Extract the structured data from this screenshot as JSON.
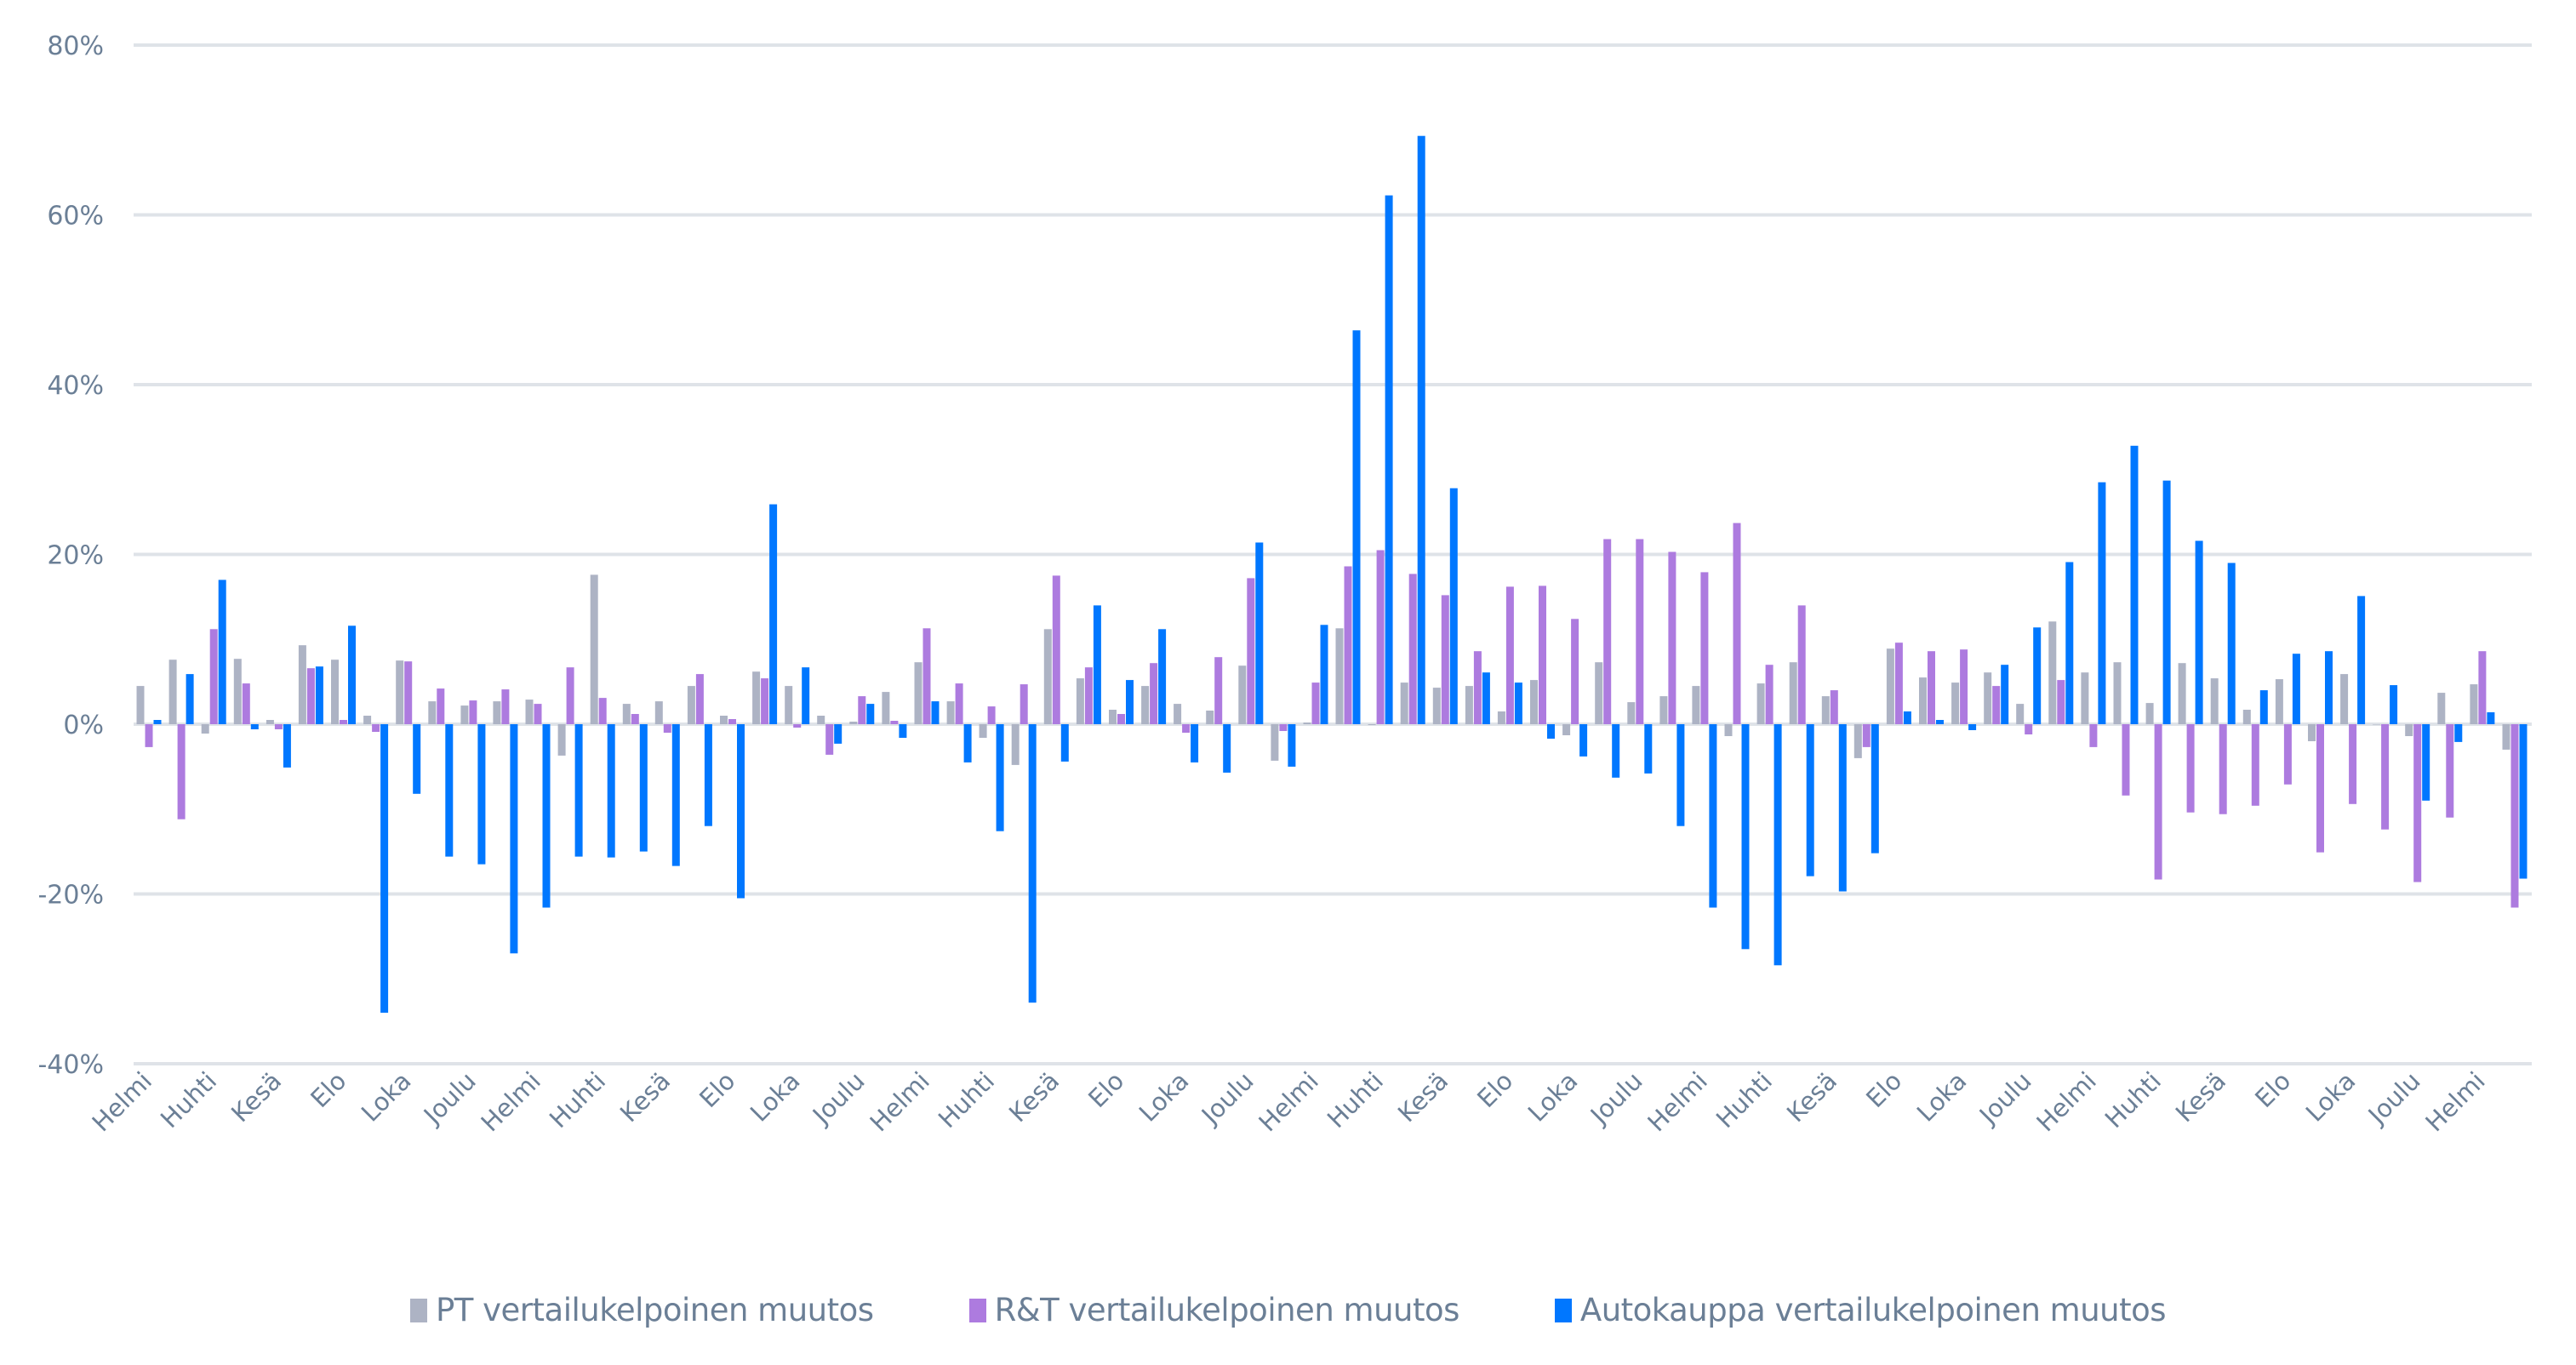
{
  "chart_data": {
    "type": "bar",
    "title": "",
    "xlabel": "",
    "ylabel": "",
    "ylim": [
      -40,
      80
    ],
    "yticks": [
      -40,
      -20,
      0,
      20,
      40,
      60,
      80
    ],
    "ytick_labels": [
      "-40%",
      "-20%",
      "0%",
      "20%",
      "40%",
      "60%",
      "80%"
    ],
    "grid": true,
    "legend_position": "bottom",
    "tick_labels": [
      "Helmi",
      "",
      "Huhti",
      "",
      "Kesä",
      "",
      "Elo",
      "",
      "Loka",
      "",
      "Joulu",
      "",
      "Helmi",
      "",
      "Huhti",
      "",
      "Kesä",
      "",
      "Elo",
      "",
      "Loka",
      "",
      "Joulu",
      "",
      "Helmi",
      "",
      "Huhti",
      "",
      "Kesä",
      "",
      "Elo",
      "",
      "Loka",
      "",
      "Joulu",
      "",
      "Helmi",
      "",
      "Huhti",
      "",
      "Kesä",
      "",
      "Elo",
      "",
      "Loka",
      "",
      "Joulu",
      "",
      "Helmi",
      "",
      "Huhti",
      "",
      "Kesä",
      "",
      "Elo",
      "",
      "Loka",
      "",
      "Joulu",
      "",
      "Helmi",
      "",
      "Huhti",
      "",
      "Kesä",
      "",
      "Elo",
      "",
      "Loka",
      "",
      "Joulu",
      "",
      "Helmi",
      ""
    ],
    "series": [
      {
        "name": "PT vertailukelpoinen muutos",
        "color": "#adb3c4",
        "values": [
          4.5,
          7.6,
          -1.1,
          7.7,
          0.5,
          9.3,
          7.6,
          1.0,
          7.5,
          2.7,
          2.2,
          2.7,
          2.9,
          -3.7,
          17.6,
          2.4,
          2.7,
          4.5,
          1.0,
          6.2,
          4.5,
          1.0,
          0.3,
          3.8,
          7.3,
          2.7,
          -1.6,
          -4.8,
          11.2,
          5.4,
          1.7,
          4.5,
          2.4,
          1.6,
          6.9,
          -4.3,
          0.2,
          11.3,
          -0.1,
          4.9,
          4.3,
          4.5,
          1.5,
          5.2,
          -1.3,
          7.3,
          2.6,
          3.3,
          4.5,
          -1.4,
          4.8,
          7.3,
          3.3,
          -4.0,
          8.9,
          5.5,
          4.9,
          6.1,
          2.4,
          12.1,
          6.1,
          7.3,
          2.5,
          7.2,
          5.4,
          1.7,
          5.3,
          -2.0,
          5.9,
          0.0,
          -1.4,
          3.7,
          4.7,
          -3.0
        ]
      },
      {
        "name": "R&T vertailukelpoinen muutos",
        "color": "#ad7bdf",
        "values": [
          -2.7,
          -11.2,
          11.2,
          4.8,
          -0.6,
          6.6,
          0.5,
          -0.9,
          7.4,
          4.2,
          2.8,
          4.1,
          2.4,
          6.7,
          3.1,
          1.2,
          -1.0,
          5.9,
          0.6,
          5.4,
          -0.4,
          -3.6,
          3.3,
          0.4,
          11.3,
          4.8,
          2.1,
          4.7,
          17.5,
          6.7,
          1.2,
          7.2,
          -1.0,
          7.9,
          17.2,
          -0.8,
          4.9,
          18.6,
          20.5,
          17.7,
          15.2,
          8.6,
          16.2,
          16.3,
          12.4,
          21.8,
          21.8,
          20.3,
          17.9,
          23.7,
          7.0,
          14.0,
          4.0,
          -2.7,
          9.6,
          8.6,
          8.8,
          4.5,
          -1.2,
          5.2,
          -2.7,
          -8.4,
          -18.3,
          -10.4,
          -10.6,
          -9.6,
          -7.1,
          -15.1,
          -9.4,
          -12.4,
          -18.6,
          -11.0,
          8.6,
          -21.6
        ]
      },
      {
        "name": "Autokauppa vertailukelpoinen muutos",
        "color": "#0077ff",
        "values": [
          0.5,
          5.9,
          17.0,
          -0.6,
          -5.1,
          6.8,
          11.6,
          -34.0,
          -8.2,
          -15.6,
          -16.5,
          -27.0,
          -21.6,
          -15.6,
          -15.7,
          -15.0,
          -16.7,
          -12.0,
          -20.5,
          25.9,
          6.7,
          -2.3,
          2.4,
          -1.6,
          2.7,
          -4.5,
          -12.6,
          -32.8,
          -4.4,
          14.0,
          5.2,
          11.2,
          -4.5,
          -5.7,
          21.4,
          -5.0,
          11.7,
          46.4,
          62.3,
          69.3,
          27.8,
          6.1,
          4.9,
          -1.7,
          -3.8,
          -6.3,
          -5.8,
          -12.0,
          -21.6,
          -26.5,
          -28.4,
          -17.9,
          -19.7,
          -15.2,
          1.5,
          0.5,
          -0.7,
          7.0,
          11.4,
          19.1,
          28.5,
          32.8,
          28.7,
          21.6,
          19.0,
          4.0,
          8.3,
          8.6,
          15.1,
          4.6,
          -9.0,
          -2.1,
          1.4,
          -18.2
        ]
      }
    ]
  },
  "legend": {
    "items": [
      {
        "label": "PT vertailukelpoinen muutos",
        "color": "#adb3c4"
      },
      {
        "label": "R&T vertailukelpoinen muutos",
        "color": "#ad7bdf"
      },
      {
        "label": "Autokauppa vertailukelpoinen muutos",
        "color": "#0077ff"
      }
    ]
  }
}
